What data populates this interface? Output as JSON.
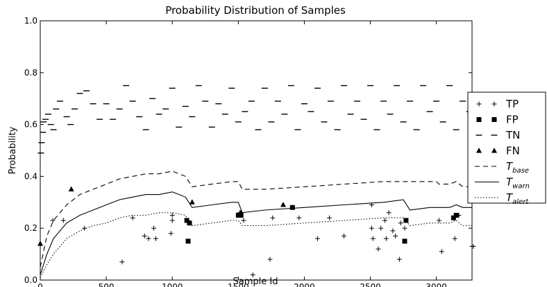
{
  "chart_data": {
    "type": "scatter",
    "title": "Probability Distribution of Samples",
    "xlabel": "Sample Id",
    "ylabel": "Probability",
    "xlim": [
      0,
      3270
    ],
    "ylim": [
      0.0,
      1.0
    ],
    "xticks": [
      0,
      500,
      1000,
      1500,
      2000,
      2500,
      3000
    ],
    "yticks": [
      0.0,
      0.2,
      0.4,
      0.6,
      0.8,
      1.0
    ],
    "xtick_labels": [
      "0",
      "500",
      "1000",
      "1500",
      "2000",
      "2500",
      "3000"
    ],
    "ytick_labels": [
      "0.0",
      "0.2",
      "0.4",
      "0.6",
      "0.8",
      "1.0"
    ],
    "grid": false,
    "legend_position": "outside-right",
    "series": [
      {
        "name": "TP",
        "marker": "plus",
        "points": [
          [
            95,
            0.23
          ],
          [
            175,
            0.23
          ],
          [
            335,
            0.2
          ],
          [
            620,
            0.07
          ],
          [
            700,
            0.24
          ],
          [
            790,
            0.17
          ],
          [
            820,
            0.16
          ],
          [
            860,
            0.2
          ],
          [
            875,
            0.16
          ],
          [
            990,
            0.18
          ],
          [
            1000,
            0.23
          ],
          [
            1000,
            0.25
          ],
          [
            1510,
            0.26
          ],
          [
            1540,
            0.23
          ],
          [
            1610,
            0.02
          ],
          [
            1740,
            0.08
          ],
          [
            1760,
            0.24
          ],
          [
            1960,
            0.24
          ],
          [
            2100,
            0.16
          ],
          [
            2190,
            0.24
          ],
          [
            2300,
            0.17
          ],
          [
            2510,
            0.29
          ],
          [
            2510,
            0.2
          ],
          [
            2520,
            0.16
          ],
          [
            2560,
            0.12
          ],
          [
            2580,
            0.2
          ],
          [
            2610,
            0.23
          ],
          [
            2620,
            0.16
          ],
          [
            2640,
            0.26
          ],
          [
            2670,
            0.19
          ],
          [
            2690,
            0.17
          ],
          [
            2720,
            0.08
          ],
          [
            2730,
            0.22
          ],
          [
            2760,
            0.2
          ],
          [
            3020,
            0.23
          ],
          [
            3040,
            0.11
          ],
          [
            3140,
            0.16
          ],
          [
            3170,
            0.25
          ],
          [
            3270,
            0.13
          ],
          [
            3280,
            0.13
          ]
        ]
      },
      {
        "name": "FP",
        "marker": "square",
        "points": [
          [
            1110,
            0.23
          ],
          [
            1120,
            0.15
          ],
          [
            1130,
            0.22
          ],
          [
            1500,
            0.25
          ],
          [
            1520,
            0.25
          ],
          [
            1910,
            0.28
          ],
          [
            2770,
            0.23
          ],
          [
            2760,
            0.15
          ],
          [
            3130,
            0.24
          ],
          [
            3150,
            0.25
          ]
        ]
      },
      {
        "name": "TN",
        "marker": "dash",
        "description_points": "Many horizontal dash markers between 0.46 and 0.77",
        "points": [
          [
            5,
            0.49
          ],
          [
            10,
            0.53
          ],
          [
            20,
            0.57
          ],
          [
            25,
            0.61
          ],
          [
            40,
            0.62
          ],
          [
            60,
            0.64
          ],
          [
            80,
            0.6
          ],
          [
            100,
            0.58
          ],
          [
            120,
            0.66
          ],
          [
            150,
            0.69
          ],
          [
            200,
            0.63
          ],
          [
            230,
            0.6
          ],
          [
            260,
            0.66
          ],
          [
            300,
            0.72
          ],
          [
            350,
            0.73
          ],
          [
            400,
            0.68
          ],
          [
            450,
            0.62
          ],
          [
            500,
            0.68
          ],
          [
            550,
            0.62
          ],
          [
            600,
            0.66
          ],
          [
            650,
            0.75
          ],
          [
            700,
            0.69
          ],
          [
            750,
            0.63
          ],
          [
            800,
            0.58
          ],
          [
            850,
            0.7
          ],
          [
            900,
            0.64
          ],
          [
            950,
            0.66
          ],
          [
            1000,
            0.74
          ],
          [
            1050,
            0.59
          ],
          [
            1100,
            0.67
          ],
          [
            1150,
            0.63
          ],
          [
            1200,
            0.75
          ],
          [
            1250,
            0.69
          ],
          [
            1300,
            0.59
          ],
          [
            1350,
            0.68
          ],
          [
            1400,
            0.64
          ],
          [
            1450,
            0.74
          ],
          [
            1500,
            0.61
          ],
          [
            1550,
            0.65
          ],
          [
            1600,
            0.69
          ],
          [
            1650,
            0.58
          ],
          [
            1700,
            0.74
          ],
          [
            1750,
            0.61
          ],
          [
            1800,
            0.69
          ],
          [
            1850,
            0.64
          ],
          [
            1900,
            0.75
          ],
          [
            1950,
            0.58
          ],
          [
            2000,
            0.68
          ],
          [
            2050,
            0.65
          ],
          [
            2100,
            0.74
          ],
          [
            2150,
            0.61
          ],
          [
            2200,
            0.69
          ],
          [
            2250,
            0.58
          ],
          [
            2300,
            0.75
          ],
          [
            2350,
            0.64
          ],
          [
            2400,
            0.69
          ],
          [
            2450,
            0.62
          ],
          [
            2500,
            0.75
          ],
          [
            2550,
            0.58
          ],
          [
            2600,
            0.69
          ],
          [
            2650,
            0.64
          ],
          [
            2700,
            0.75
          ],
          [
            2750,
            0.61
          ],
          [
            2800,
            0.69
          ],
          [
            2850,
            0.58
          ],
          [
            2900,
            0.75
          ],
          [
            2950,
            0.65
          ],
          [
            3000,
            0.69
          ],
          [
            3050,
            0.61
          ],
          [
            3100,
            0.75
          ],
          [
            3150,
            0.58
          ],
          [
            3200,
            0.69
          ],
          [
            3250,
            0.65
          ]
        ]
      },
      {
        "name": "FN",
        "marker": "triangle",
        "points": [
          [
            0,
            0.14
          ],
          [
            235,
            0.35
          ],
          [
            1150,
            0.3
          ],
          [
            1520,
            0.26
          ],
          [
            1840,
            0.29
          ]
        ]
      }
    ],
    "lines": [
      {
        "name": "T_base",
        "style": "dashed",
        "points": [
          [
            0,
            0.05
          ],
          [
            50,
            0.17
          ],
          [
            100,
            0.23
          ],
          [
            200,
            0.29
          ],
          [
            300,
            0.33
          ],
          [
            400,
            0.35
          ],
          [
            500,
            0.37
          ],
          [
            600,
            0.39
          ],
          [
            700,
            0.4
          ],
          [
            800,
            0.41
          ],
          [
            900,
            0.41
          ],
          [
            1000,
            0.42
          ],
          [
            1100,
            0.4
          ],
          [
            1150,
            0.36
          ],
          [
            1300,
            0.37
          ],
          [
            1450,
            0.38
          ],
          [
            1500,
            0.38
          ],
          [
            1530,
            0.35
          ],
          [
            1700,
            0.35
          ],
          [
            2000,
            0.36
          ],
          [
            2300,
            0.37
          ],
          [
            2600,
            0.38
          ],
          [
            2800,
            0.38
          ],
          [
            2950,
            0.38
          ],
          [
            3000,
            0.38
          ],
          [
            3020,
            0.37
          ],
          [
            3100,
            0.37
          ],
          [
            3150,
            0.38
          ],
          [
            3200,
            0.36
          ],
          [
            3270,
            0.36
          ]
        ]
      },
      {
        "name": "T_warn",
        "style": "solid",
        "points": [
          [
            0,
            0.02
          ],
          [
            50,
            0.1
          ],
          [
            100,
            0.16
          ],
          [
            200,
            0.22
          ],
          [
            300,
            0.25
          ],
          [
            400,
            0.27
          ],
          [
            500,
            0.29
          ],
          [
            600,
            0.31
          ],
          [
            700,
            0.32
          ],
          [
            800,
            0.33
          ],
          [
            900,
            0.33
          ],
          [
            1000,
            0.34
          ],
          [
            1100,
            0.32
          ],
          [
            1150,
            0.28
          ],
          [
            1300,
            0.29
          ],
          [
            1450,
            0.3
          ],
          [
            1500,
            0.3
          ],
          [
            1530,
            0.26
          ],
          [
            1700,
            0.27
          ],
          [
            2000,
            0.28
          ],
          [
            2300,
            0.29
          ],
          [
            2600,
            0.3
          ],
          [
            2750,
            0.31
          ],
          [
            2800,
            0.27
          ],
          [
            2950,
            0.28
          ],
          [
            3000,
            0.28
          ],
          [
            3100,
            0.28
          ],
          [
            3150,
            0.29
          ],
          [
            3200,
            0.28
          ],
          [
            3270,
            0.28
          ]
        ]
      },
      {
        "name": "T_alert",
        "style": "dotted",
        "points": [
          [
            0,
            0.01
          ],
          [
            50,
            0.06
          ],
          [
            100,
            0.1
          ],
          [
            200,
            0.16
          ],
          [
            300,
            0.19
          ],
          [
            400,
            0.21
          ],
          [
            500,
            0.22
          ],
          [
            600,
            0.24
          ],
          [
            700,
            0.25
          ],
          [
            800,
            0.25
          ],
          [
            900,
            0.26
          ],
          [
            1000,
            0.26
          ],
          [
            1100,
            0.25
          ],
          [
            1150,
            0.21
          ],
          [
            1300,
            0.22
          ],
          [
            1450,
            0.23
          ],
          [
            1500,
            0.23
          ],
          [
            1530,
            0.21
          ],
          [
            1700,
            0.21
          ],
          [
            2000,
            0.22
          ],
          [
            2300,
            0.23
          ],
          [
            2600,
            0.24
          ],
          [
            2750,
            0.24
          ],
          [
            2800,
            0.21
          ],
          [
            2950,
            0.22
          ],
          [
            3000,
            0.22
          ],
          [
            3100,
            0.22
          ],
          [
            3150,
            0.23
          ],
          [
            3200,
            0.21
          ],
          [
            3270,
            0.21
          ]
        ]
      }
    ],
    "legend": [
      {
        "key": "TP",
        "label": "TP"
      },
      {
        "key": "FP",
        "label": "FP"
      },
      {
        "key": "TN",
        "label": "TN"
      },
      {
        "key": "FN",
        "label": "FN"
      },
      {
        "key": "T_base",
        "label": "T",
        "sub": "base"
      },
      {
        "key": "T_warn",
        "label": "T",
        "sub": "warn"
      },
      {
        "key": "T_alert",
        "label": "T",
        "sub": "alert"
      }
    ]
  }
}
